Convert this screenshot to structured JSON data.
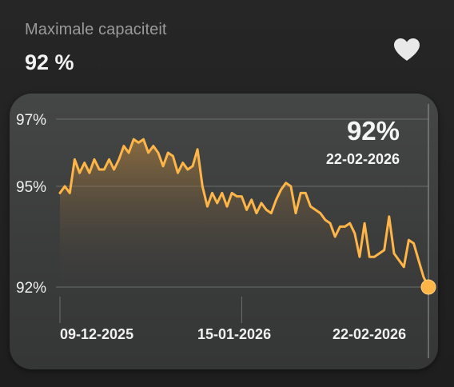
{
  "metric": {
    "label": "Maximale capaciteit",
    "value": "92 %"
  },
  "favorite_icon": "heart-icon",
  "readout": {
    "value": "92%",
    "date": "22-02-2026"
  },
  "colors": {
    "background": "#222222",
    "card": "#404141",
    "line": "#ffb547",
    "text": "#f0f0f0",
    "label": "#9a9a9a"
  },
  "chart_data": {
    "type": "area",
    "title": "",
    "xlabel": "",
    "ylabel": "",
    "ylim": [
      92,
      97
    ],
    "yticks": [
      "97%",
      "95%",
      "92%"
    ],
    "xticks": [
      "09-12-2025",
      "15-01-2026",
      "22-02-2026"
    ],
    "grid": true,
    "x": [
      "09-12-2025",
      "10-12-2025",
      "11-12-2025",
      "12-12-2025",
      "13-12-2025",
      "14-12-2025",
      "15-12-2025",
      "16-12-2025",
      "17-12-2025",
      "18-12-2025",
      "19-12-2025",
      "20-12-2025",
      "21-12-2025",
      "22-12-2025",
      "23-12-2025",
      "24-12-2025",
      "25-12-2025",
      "26-12-2025",
      "27-12-2025",
      "28-12-2025",
      "29-12-2025",
      "30-12-2025",
      "31-12-2025",
      "01-01-2026",
      "02-01-2026",
      "03-01-2026",
      "04-01-2026",
      "05-01-2026",
      "06-01-2026",
      "07-01-2026",
      "08-01-2026",
      "09-01-2026",
      "10-01-2026",
      "11-01-2026",
      "12-01-2026",
      "13-01-2026",
      "14-01-2026",
      "15-01-2026",
      "16-01-2026",
      "17-01-2026",
      "18-01-2026",
      "19-01-2026",
      "20-01-2026",
      "21-01-2026",
      "22-01-2026",
      "23-01-2026",
      "24-01-2026",
      "25-01-2026",
      "26-01-2026",
      "27-01-2026",
      "28-01-2026",
      "29-01-2026",
      "30-01-2026",
      "31-01-2026",
      "01-02-2026",
      "02-02-2026",
      "03-02-2026",
      "04-02-2026",
      "05-02-2026",
      "06-02-2026",
      "07-02-2026",
      "08-02-2026",
      "09-02-2026",
      "10-02-2026",
      "11-02-2026",
      "12-02-2026",
      "13-02-2026",
      "14-02-2026",
      "15-02-2026",
      "16-02-2026",
      "17-02-2026",
      "18-02-2026",
      "19-02-2026",
      "20-02-2026",
      "21-02-2026",
      "22-02-2026"
    ],
    "series": [
      {
        "values": [
          94.8,
          95.0,
          94.8,
          95.8,
          95.4,
          95.7,
          95.4,
          95.8,
          95.5,
          95.5,
          95.8,
          95.5,
          95.8,
          96.2,
          96.0,
          96.4,
          96.3,
          96.4,
          96.0,
          96.2,
          96.0,
          95.6,
          96.0,
          95.9,
          95.4,
          95.7,
          95.5,
          95.6,
          96.1,
          95.0,
          94.4,
          94.8,
          94.5,
          94.8,
          94.4,
          94.8,
          94.7,
          94.7,
          94.3,
          94.6,
          94.2,
          94.5,
          94.3,
          94.2,
          94.6,
          94.9,
          95.1,
          95.0,
          94.2,
          94.8,
          94.8,
          94.4,
          94.3,
          94.2,
          94.0,
          93.9,
          93.5,
          93.8,
          93.8,
          93.9,
          93.6,
          92.9,
          93.9,
          92.9,
          92.9,
          93.0,
          93.1,
          94.1,
          93.0,
          92.8,
          92.6,
          93.4,
          93.3,
          92.8,
          92.3,
          92.0
        ]
      }
    ]
  }
}
